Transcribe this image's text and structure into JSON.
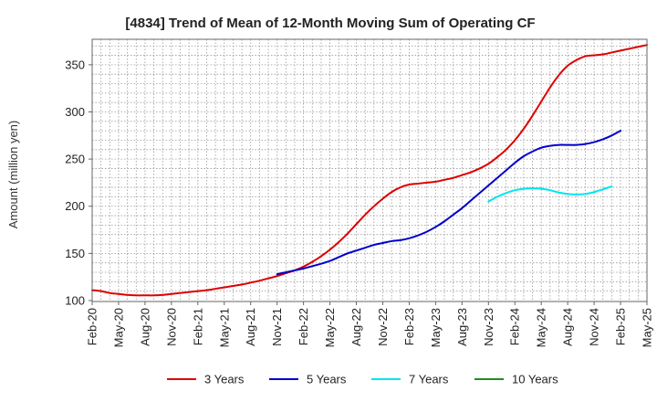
{
  "chart_data": {
    "type": "line",
    "title": "[4834]  Trend of Mean of 12-Month Moving Sum of Operating CF",
    "xlabel": "",
    "ylabel": "Amount (million yen)",
    "ylim": [
      99,
      377
    ],
    "yticks": [
      100,
      150,
      200,
      250,
      300,
      350
    ],
    "x_tick_labels": [
      "Feb-20",
      "May-20",
      "Aug-20",
      "Nov-20",
      "Feb-21",
      "May-21",
      "Aug-21",
      "Nov-21",
      "Feb-22",
      "May-22",
      "Aug-22",
      "Nov-22",
      "Feb-23",
      "May-23",
      "Aug-23",
      "Nov-23",
      "Feb-24",
      "May-24",
      "Aug-24",
      "Nov-24",
      "Feb-25",
      "May-25"
    ],
    "x_start": "Feb-20",
    "x_range_months": [
      0,
      63
    ],
    "grid": true,
    "legend_position": "bottom",
    "series": [
      {
        "name": "3 Years",
        "color": "#dd0000",
        "start_month_index": 0,
        "values": [
          111,
          110,
          108,
          107,
          106,
          105.5,
          105.5,
          105.5,
          106,
          107,
          108,
          109,
          110,
          111,
          112.5,
          114,
          115.5,
          117,
          119,
          121,
          123.5,
          126,
          129,
          132,
          136,
          141,
          147,
          154,
          162,
          171,
          181,
          191,
          200,
          208,
          215,
          220,
          223,
          224,
          225,
          226,
          228,
          230,
          233,
          236,
          240,
          245,
          252,
          260,
          270,
          282,
          296,
          311,
          326,
          339,
          349,
          355,
          359,
          360,
          361,
          363,
          365,
          367,
          369,
          371
        ]
      },
      {
        "name": "5 Years",
        "color": "#0000cc",
        "start_month_index": 21,
        "values": [
          128,
          130,
          132,
          134,
          136.5,
          139,
          142,
          146,
          150,
          153,
          156,
          159,
          161,
          163,
          164,
          166,
          169,
          173,
          178,
          184,
          191,
          198,
          206,
          214,
          222,
          230,
          238,
          246,
          253,
          258,
          262,
          264,
          265,
          265,
          265,
          266,
          268,
          271,
          275,
          280
        ]
      },
      {
        "name": "7 Years",
        "color": "#00e5ee",
        "start_month_index": 45,
        "values": [
          205,
          210,
          214,
          217,
          218.5,
          219,
          218.5,
          217,
          214.5,
          213,
          212.5,
          213,
          215,
          218,
          221
        ]
      },
      {
        "name": "10 Years",
        "color": "#228b22",
        "start_month_index": 0,
        "values": []
      }
    ]
  }
}
